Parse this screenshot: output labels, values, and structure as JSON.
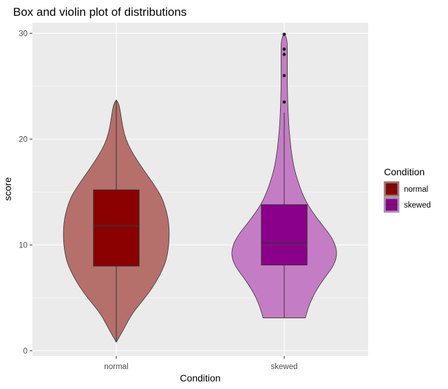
{
  "chart_data": {
    "type": "violin+box",
    "title": "Box and violin plot of distributions",
    "xlabel": "Condition",
    "ylabel": "score",
    "categories": [
      "normal",
      "skewed"
    ],
    "ylim": [
      -0.5,
      31
    ],
    "yticks": [
      0,
      10,
      20,
      30
    ],
    "grid": true,
    "legend": {
      "title": "Condition",
      "position": "right",
      "entries": [
        "normal",
        "skewed"
      ]
    },
    "colors": {
      "normal_box": "#8B0000",
      "normal_violin": "#B5706B",
      "skewed_box": "#8B008B",
      "skewed_violin": "#C47DC4",
      "panel_bg": "#EBEBEB",
      "grid": "#FFFFFF"
    },
    "series": [
      {
        "name": "normal",
        "box": {
          "q1": 8,
          "median": 11.8,
          "q3": 15.2,
          "whisker_low": 0.8,
          "whisker_high": 23.6
        },
        "outliers": [],
        "violin_profile": [
          [
            0.8,
            0.0
          ],
          [
            1.5,
            0.08
          ],
          [
            2.5,
            0.19
          ],
          [
            3.5,
            0.3
          ],
          [
            4.5,
            0.46
          ],
          [
            5.5,
            0.62
          ],
          [
            6.5,
            0.75
          ],
          [
            7.5,
            0.86
          ],
          [
            8.5,
            0.94
          ],
          [
            9.5,
            0.98
          ],
          [
            10.5,
            1.0
          ],
          [
            11.5,
            1.0
          ],
          [
            12.5,
            0.98
          ],
          [
            13.5,
            0.93
          ],
          [
            14.5,
            0.86
          ],
          [
            15.5,
            0.74
          ],
          [
            16.5,
            0.6
          ],
          [
            17.5,
            0.46
          ],
          [
            18.5,
            0.33
          ],
          [
            19.5,
            0.22
          ],
          [
            20.5,
            0.15
          ],
          [
            21.5,
            0.11
          ],
          [
            22.5,
            0.08
          ],
          [
            23.3,
            0.05
          ],
          [
            23.7,
            0.0
          ]
        ]
      },
      {
        "name": "skewed",
        "box": {
          "q1": 8.1,
          "median": 10.2,
          "q3": 13.8,
          "whisker_low": 3.1,
          "whisker_high": 22.5
        },
        "outliers": [
          23.5,
          26,
          28,
          28.5,
          29.9
        ],
        "violin_profile": [
          [
            3.1,
            0.4
          ],
          [
            4,
            0.45
          ],
          [
            5,
            0.53
          ],
          [
            6,
            0.64
          ],
          [
            7,
            0.78
          ],
          [
            8,
            0.93
          ],
          [
            9,
            1.0
          ],
          [
            10,
            0.97
          ],
          [
            11,
            0.86
          ],
          [
            12,
            0.7
          ],
          [
            13,
            0.55
          ],
          [
            14,
            0.42
          ],
          [
            15,
            0.33
          ],
          [
            16,
            0.26
          ],
          [
            17,
            0.2
          ],
          [
            18,
            0.16
          ],
          [
            19,
            0.13
          ],
          [
            20,
            0.11
          ],
          [
            21,
            0.09
          ],
          [
            22,
            0.08
          ],
          [
            23,
            0.07
          ],
          [
            24,
            0.065
          ],
          [
            25,
            0.06
          ],
          [
            26,
            0.06
          ],
          [
            27,
            0.06
          ],
          [
            28,
            0.06
          ],
          [
            29,
            0.06
          ],
          [
            29.6,
            0.04
          ],
          [
            30,
            0.0
          ]
        ]
      }
    ]
  }
}
